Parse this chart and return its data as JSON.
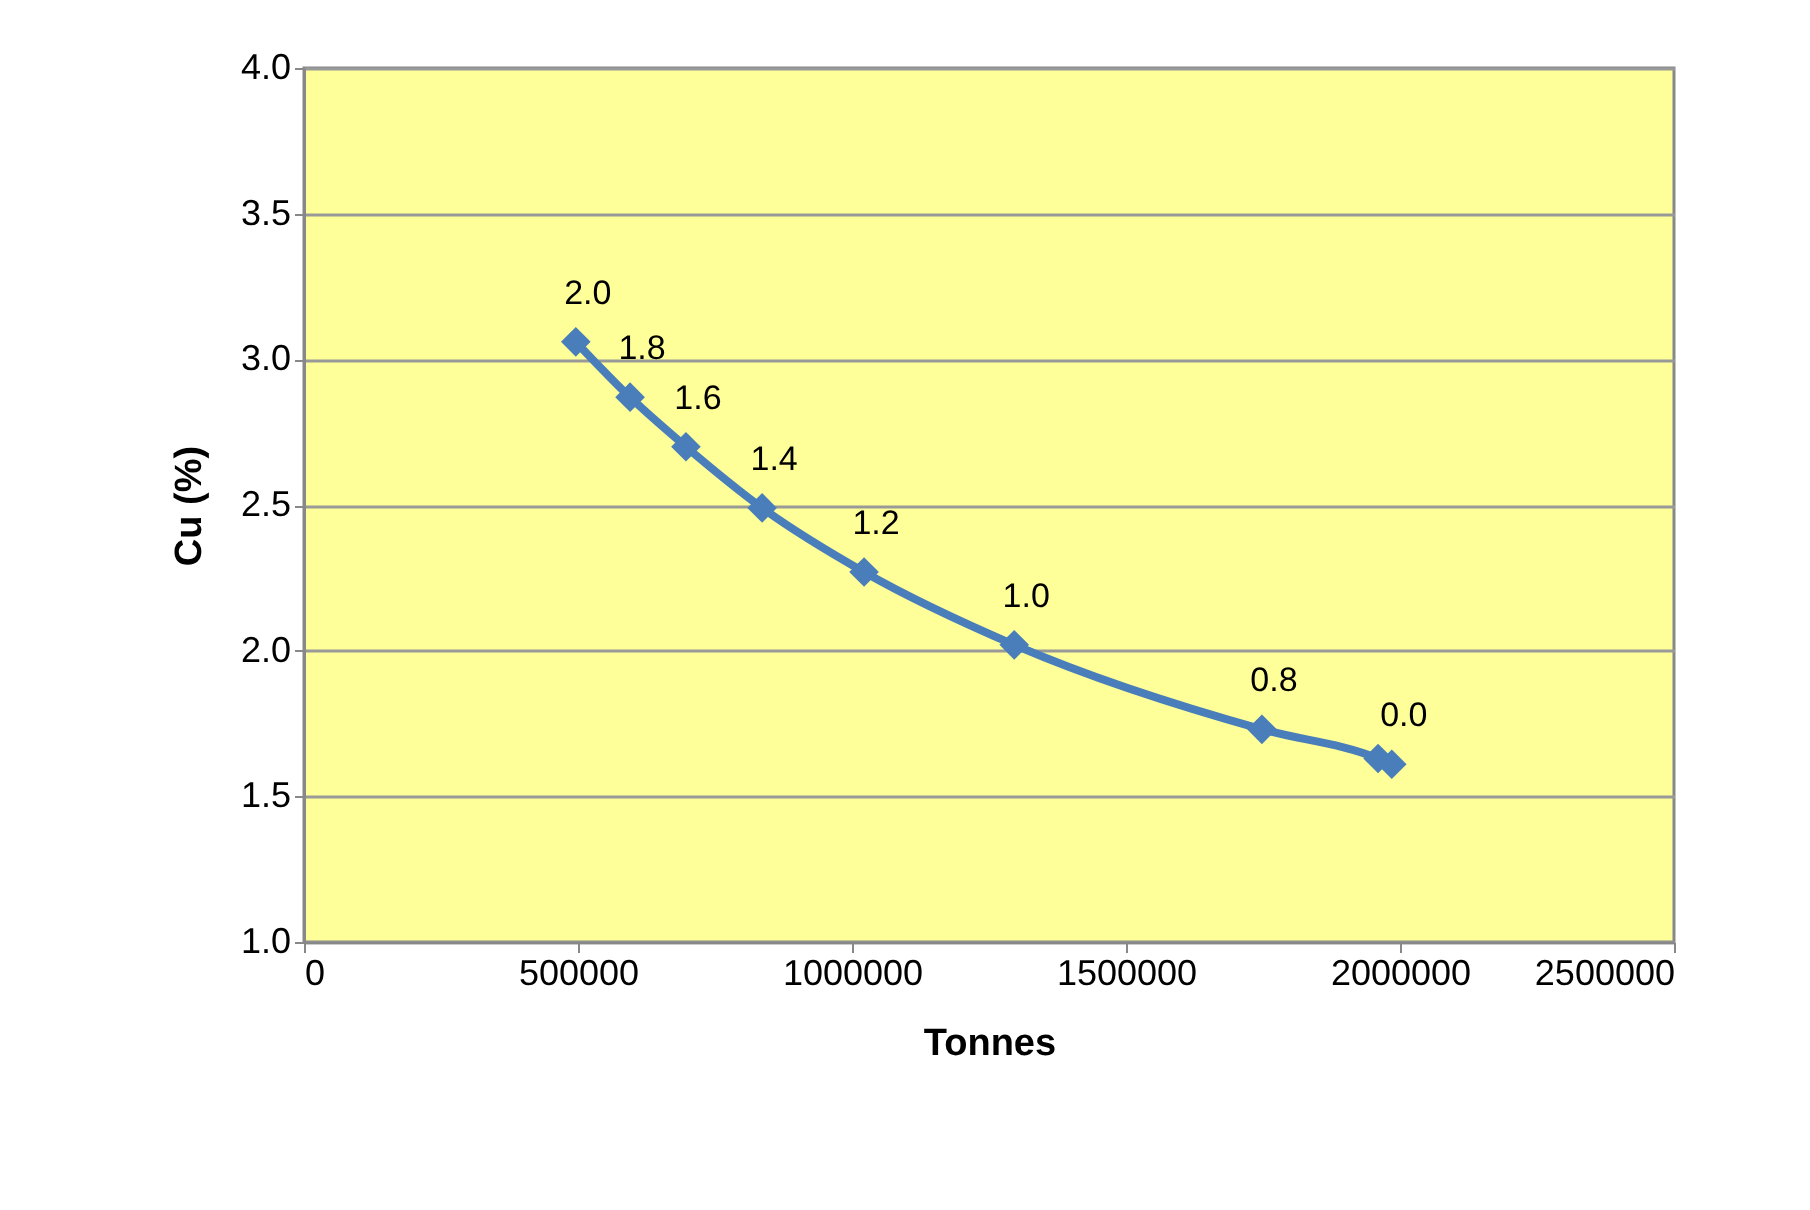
{
  "chart_data": {
    "type": "line",
    "xlabel": "Tonnes",
    "ylabel": "Cu (%)",
    "x": [
      496000,
      595000,
      697000,
      836000,
      1022000,
      1296000,
      1748000,
      1960000,
      1985000
    ],
    "series": [
      {
        "color": "#4a7ebb",
        "values": [
          3.06,
          2.87,
          2.7,
          2.49,
          2.27,
          2.02,
          1.73,
          1.63,
          1.61
        ]
      }
    ],
    "annotations": [
      {
        "text": "2.0",
        "x": 496000,
        "y": 3.06
      },
      {
        "text": "1.8",
        "x": 595000,
        "y": 2.87
      },
      {
        "text": "1.6",
        "x": 697000,
        "y": 2.7
      },
      {
        "text": "1.4",
        "x": 836000,
        "y": 2.49
      },
      {
        "text": "1.2",
        "x": 1022000,
        "y": 2.27
      },
      {
        "text": "1.0",
        "x": 1296000,
        "y": 2.02
      },
      {
        "text": "0.8",
        "x": 1748000,
        "y": 1.73
      },
      {
        "text": "0.0",
        "x": 1985000,
        "y": 1.61
      }
    ],
    "xlim": [
      0,
      2500000
    ],
    "xticks": [
      0,
      500000,
      1000000,
      1500000,
      2000000,
      2500000
    ],
    "ylim": [
      1.0,
      4.0
    ],
    "yticks": [
      {
        "value": 1.0,
        "label": "1.0"
      },
      {
        "value": 1.5,
        "label": "1.5"
      },
      {
        "value": 2.0,
        "label": "2.0"
      },
      {
        "value": 2.5,
        "label": "2.5"
      },
      {
        "value": 3.0,
        "label": "3.0"
      },
      {
        "value": 3.5,
        "label": "3.5"
      },
      {
        "value": 4.0,
        "label": "4.0"
      }
    ],
    "grid": "y",
    "marker": "diamond",
    "line_style": "solid"
  }
}
